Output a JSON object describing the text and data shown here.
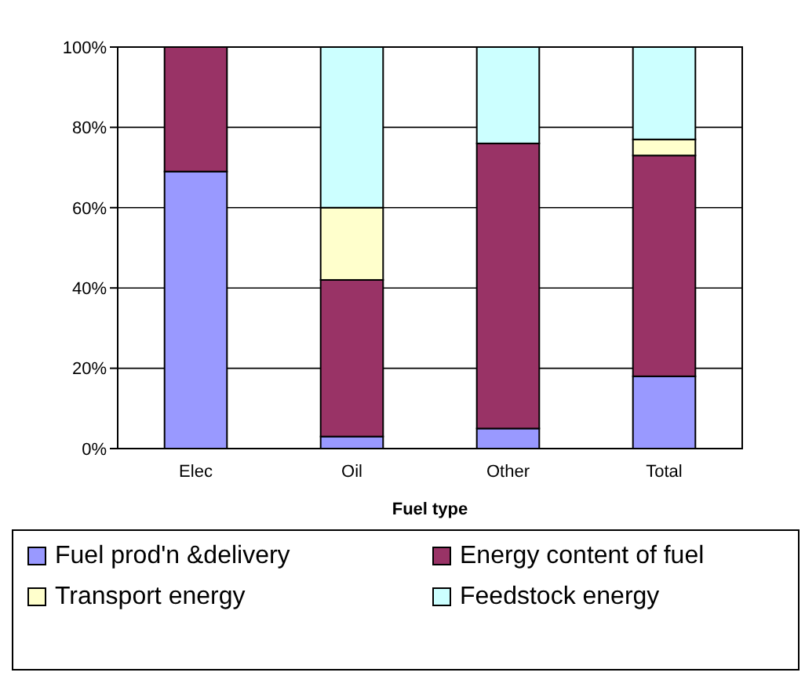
{
  "chart_data": {
    "type": "bar",
    "stacked": true,
    "xlabel": "Fuel type",
    "categories": [
      "Elec",
      "Oil",
      "Other",
      "Total"
    ],
    "series": [
      {
        "name": "Fuel prod'n &delivery",
        "color": "#9999ff",
        "values": [
          69,
          3,
          5,
          18
        ]
      },
      {
        "name": "Energy content of fuel",
        "color": "#993366",
        "values": [
          31,
          39,
          71,
          55
        ]
      },
      {
        "name": "Transport energy",
        "color": "#ffffcc",
        "values": [
          0,
          18,
          0,
          4
        ]
      },
      {
        "name": "Feedstock energy",
        "color": "#ccffff",
        "values": [
          0,
          40,
          24,
          23
        ]
      }
    ],
    "ylim": [
      0,
      100
    ],
    "yticks": [
      {
        "value": 0,
        "label": "0%"
      },
      {
        "value": 20,
        "label": "20%"
      },
      {
        "value": 40,
        "label": "40%"
      },
      {
        "value": 60,
        "label": "60%"
      },
      {
        "value": 80,
        "label": "80%"
      },
      {
        "value": 100,
        "label": "100%"
      }
    ],
    "grid": "y",
    "legend": "bottom"
  }
}
